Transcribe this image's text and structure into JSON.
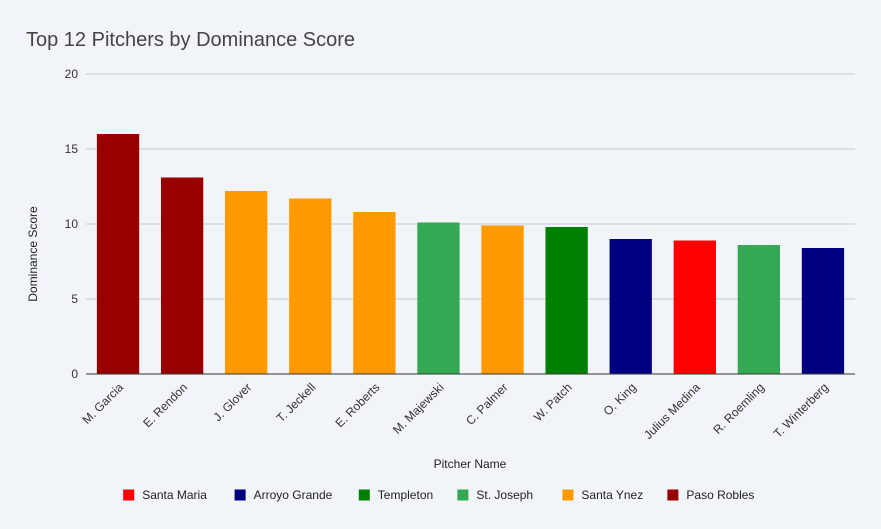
{
  "chart_data": {
    "type": "bar",
    "title": "Top 12 Pitchers by Dominance Score",
    "xlabel": "Pitcher Name",
    "ylabel": "Dominance Score",
    "ylim": [
      0,
      20
    ],
    "yticks": [
      0,
      5,
      10,
      15,
      20
    ],
    "grid": true,
    "legend_position": "bottom",
    "categories": [
      "M. Garcia",
      "E. Rendon",
      "J. Glover",
      "T. Jeckell",
      "E. Roberts",
      "M. Majewski",
      "C. Palmer",
      "W. Patch",
      "O. King",
      "Julius Medina",
      "R. Roemling",
      "T. Winterberg"
    ],
    "values": [
      16.0,
      13.1,
      12.2,
      11.7,
      10.8,
      10.1,
      9.9,
      9.8,
      9.0,
      8.9,
      8.6,
      8.4
    ],
    "bar_groups": [
      "Paso Robles",
      "Paso Robles",
      "Santa Ynez",
      "Santa Ynez",
      "Santa Ynez",
      "St. Joseph",
      "Santa Ynez",
      "Templeton",
      "Arroyo Grande",
      "Santa Maria",
      "St. Joseph",
      "Arroyo Grande"
    ],
    "legend": [
      {
        "name": "Santa Maria",
        "color": "#ff0000"
      },
      {
        "name": "Arroyo Grande",
        "color": "#000080"
      },
      {
        "name": "Templeton",
        "color": "#008000"
      },
      {
        "name": "St. Joseph",
        "color": "#34a853"
      },
      {
        "name": "Santa Ynez",
        "color": "#ff9900"
      },
      {
        "name": "Paso Robles",
        "color": "#990000"
      }
    ]
  }
}
